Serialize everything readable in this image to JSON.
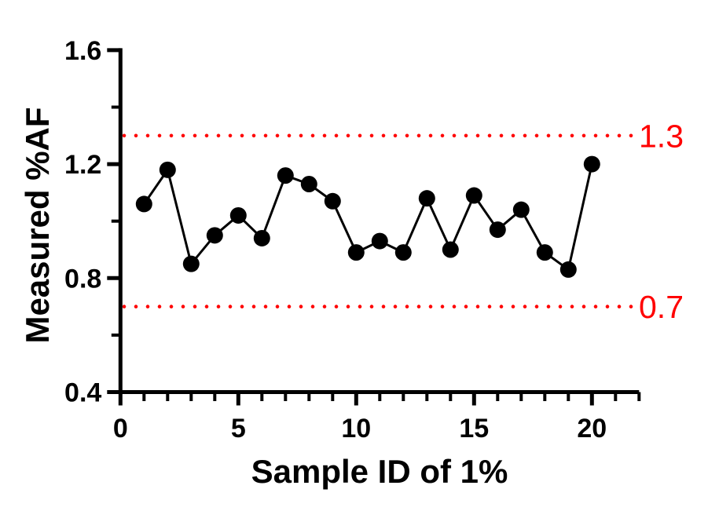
{
  "chart_data": {
    "type": "line",
    "title": "",
    "xlabel": "Sample ID of 1%",
    "ylabel": "Measured %AF",
    "x": [
      1,
      2,
      3,
      4,
      5,
      6,
      7,
      8,
      9,
      10,
      11,
      12,
      13,
      14,
      15,
      16,
      17,
      18,
      19,
      20
    ],
    "series": [
      {
        "name": "Measured %AF",
        "values": [
          1.06,
          1.18,
          0.85,
          0.95,
          1.02,
          0.94,
          1.16,
          1.13,
          1.07,
          0.89,
          0.93,
          0.89,
          1.08,
          0.9,
          1.09,
          0.97,
          1.04,
          0.89,
          0.83,
          1.2
        ],
        "color": "#000000",
        "marker": "filled-circle"
      }
    ],
    "xlim": [
      0,
      22
    ],
    "ylim": [
      0.4,
      1.6
    ],
    "x_major_ticks": [
      0,
      5,
      10,
      15,
      20
    ],
    "x_major_labels": [
      "0",
      "5",
      "10",
      "15",
      "20"
    ],
    "x_minor_ticks": [
      1,
      2,
      3,
      4,
      6,
      7,
      8,
      9,
      11,
      12,
      13,
      14,
      16,
      17,
      18,
      19,
      21,
      22
    ],
    "y_major_ticks": [
      0.4,
      0.8,
      1.2,
      1.6
    ],
    "y_major_labels": [
      "0.4",
      "0.8",
      "1.2",
      "1.6"
    ],
    "y_minor_ticks": [
      0.6,
      1.0,
      1.4
    ],
    "reference_lines": [
      {
        "value": 1.3,
        "label": "1.3",
        "color": "#ff0000",
        "style": "dotted"
      },
      {
        "value": 0.7,
        "label": "0.7",
        "color": "#ff0000",
        "style": "dotted"
      }
    ],
    "grid": false,
    "legend": null,
    "axis_color": "#000000",
    "background_color": "#ffffff"
  }
}
